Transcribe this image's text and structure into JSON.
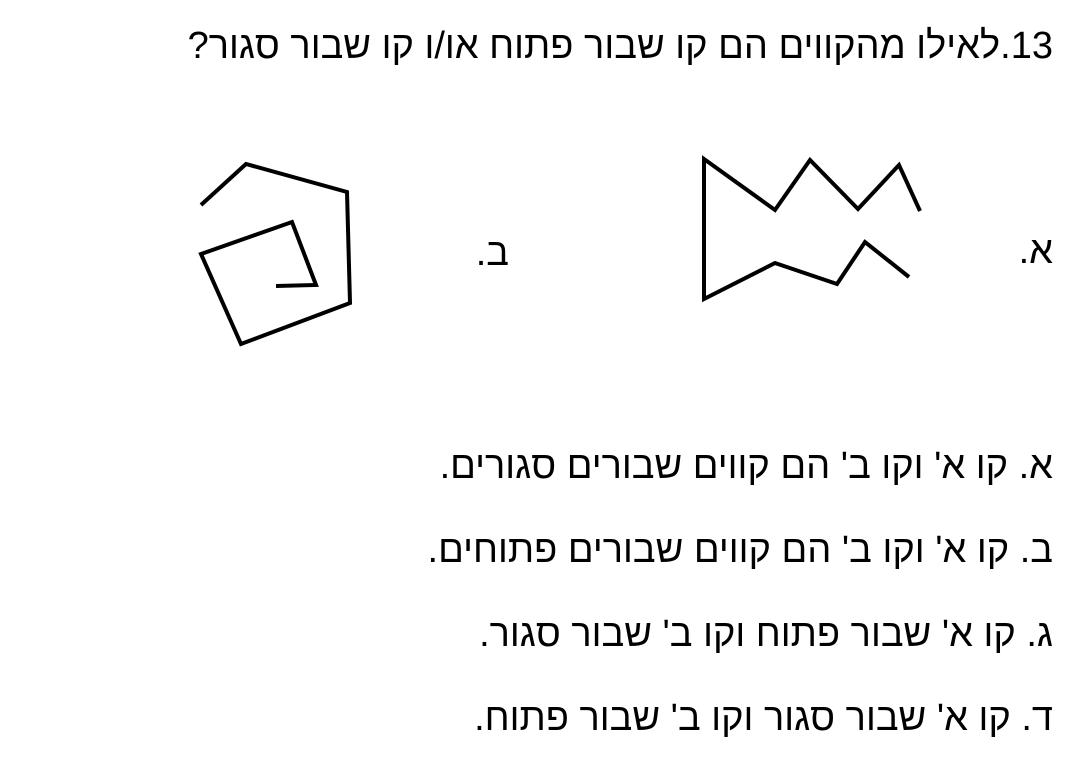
{
  "question": {
    "title": "13.לאילו מהקווים הם קו שבור פתוח או/ו קו שבור סגור?"
  },
  "figures": [
    {
      "label": "א."
    },
    {
      "label": "ב."
    }
  ],
  "answers": [
    "א. קו א' וקו ב' הם קווים שבורים סגורים.",
    "ב. קו א' וקו ב' הם קווים שבורים פתוחים.",
    "ג. קו א' שבור פתוח וקו ב' שבור סגור.",
    "ד. קו א' שבור סגור וקו ב' שבור פתוח."
  ]
}
